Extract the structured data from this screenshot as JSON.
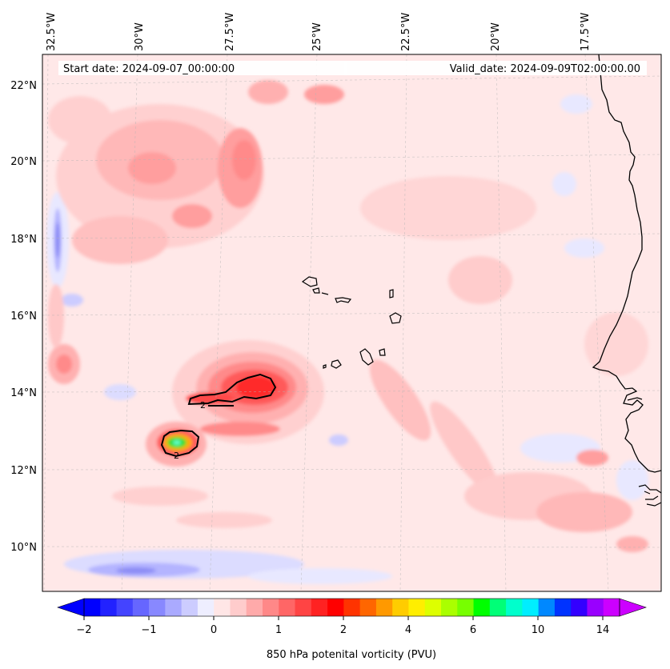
{
  "header": {
    "start_label": "Start date: 2024-09-07_00:00:00",
    "valid_label": "Valid_date: 2024-09-09T02:00:00.00"
  },
  "axes": {
    "lon_labels": [
      "32.5°W",
      "30°W",
      "27.5°W",
      "25°W",
      "22.5°W",
      "20°W",
      "17.5°W"
    ],
    "lat_labels": [
      "22°N",
      "20°N",
      "18°N",
      "16°N",
      "14°N",
      "12°N",
      "10°N"
    ]
  },
  "colorbar": {
    "label": "850 hPa potenital vorticity (PVU)",
    "tick_labels": [
      "−2",
      "−1",
      "0",
      "1",
      "2",
      "4",
      "6",
      "10",
      "14"
    ],
    "colors": [
      "#0000ff",
      "#2222ff",
      "#4444ff",
      "#6666ff",
      "#8888ff",
      "#aaaaff",
      "#ccccff",
      "#eeeeff",
      "#ffe6e6",
      "#ffcccc",
      "#ffaaaa",
      "#ff8888",
      "#ff6666",
      "#ff4444",
      "#ff2222",
      "#ff0000",
      "#ff3300",
      "#ff6600",
      "#ff9900",
      "#ffcc00",
      "#ffee00",
      "#ddff00",
      "#aaff00",
      "#77ff00",
      "#00ff00",
      "#00ff77",
      "#00ffcc",
      "#00eeff",
      "#0088ff",
      "#0033ff",
      "#3300ff",
      "#9900ff",
      "#cc00ff"
    ],
    "ends": {
      "low": "#0000ff",
      "high": "#cc00ff"
    }
  },
  "contour_labels": {
    "upper": "2",
    "lower": "2"
  },
  "palette": {
    "background": "#ffe8e8",
    "light_pink": "#ffd0d0",
    "pink": "#ffb0b0",
    "salmon": "#ff8a8a",
    "red": "#ff4a4a",
    "bright_red": "#ff1a1a",
    "light_blue": "#e8e8ff",
    "blue": "#b4b4ff",
    "mid_blue": "#8c8cf5",
    "green": "#33dd33",
    "cyan": "#66ffcc",
    "yellow": "#ffdd00",
    "coast": "#000000"
  }
}
